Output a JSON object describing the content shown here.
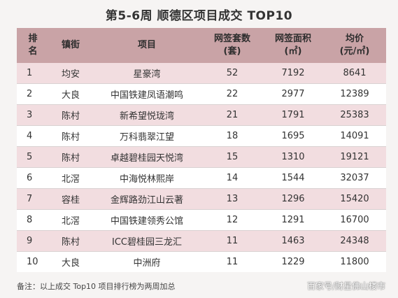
{
  "title": "第5-6周 顺德区项目成交 TOP10",
  "header": {
    "rank": "排名",
    "town": "镇街",
    "project": "项目",
    "units": "网签套数(套)",
    "area": "网签面积(㎡)",
    "price": "均价(元/㎡)"
  },
  "rows": [
    {
      "rank": "1",
      "town": "均安",
      "project": "星豪湾",
      "units": "52",
      "area": "7192",
      "price": "8641"
    },
    {
      "rank": "2",
      "town": "大良",
      "project": "中国铁建凤语潮鸣",
      "units": "22",
      "area": "2977",
      "price": "12389"
    },
    {
      "rank": "3",
      "town": "陈村",
      "project": "新希望悦珑湾",
      "units": "21",
      "area": "1791",
      "price": "25383"
    },
    {
      "rank": "4",
      "town": "陈村",
      "project": "万科翡翠江望",
      "units": "18",
      "area": "1695",
      "price": "14091"
    },
    {
      "rank": "5",
      "town": "陈村",
      "project": "卓越碧桂园天悦湾",
      "units": "15",
      "area": "1310",
      "price": "19121"
    },
    {
      "rank": "6",
      "town": "北滘",
      "project": "中海悦林熙岸",
      "units": "14",
      "area": "1544",
      "price": "32037"
    },
    {
      "rank": "7",
      "town": "容桂",
      "project": "金辉路劲江山云著",
      "units": "13",
      "area": "1296",
      "price": "15420"
    },
    {
      "rank": "8",
      "town": "北滘",
      "project": "中国铁建领秀公馆",
      "units": "12",
      "area": "1291",
      "price": "16700"
    },
    {
      "rank": "9",
      "town": "陈村",
      "project": "ICC碧桂园三龙汇",
      "units": "11",
      "area": "1463",
      "price": "24348"
    },
    {
      "rank": "10",
      "town": "大良",
      "project": "中洲府",
      "units": "11",
      "area": "1229",
      "price": "11800"
    }
  ],
  "footnote": "备注：以上成交 Top10 项目排行榜为两周加总",
  "source": "百家号/财星佛山楼市",
  "colors": {
    "header_bg": "#c9a3a6",
    "odd_row_bg": "#f2dde0",
    "even_row_bg": "#ffffff"
  }
}
